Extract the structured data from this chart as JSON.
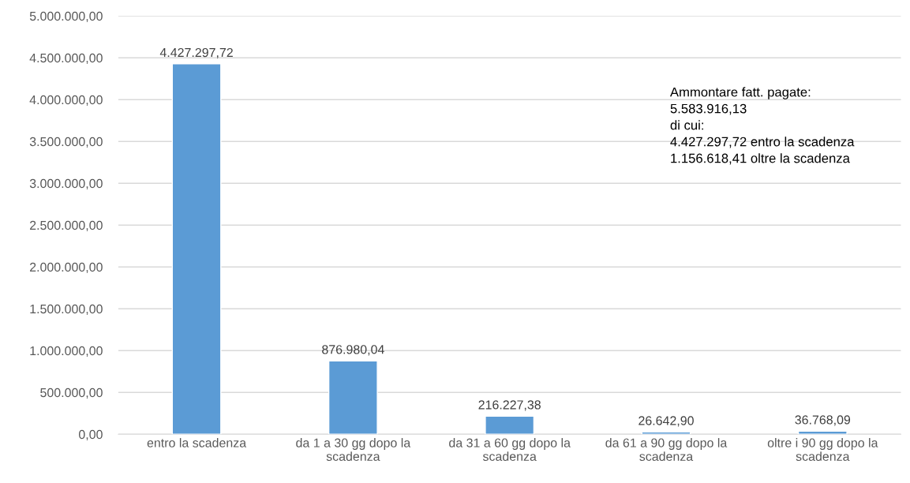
{
  "chart_data": {
    "type": "bar",
    "categories": [
      "entro la scadenza",
      "da 1 a 30 gg dopo la\nscadenza",
      "da 31 a 60 gg dopo la\nscadenza",
      "da 61 a 90 gg dopo la\nscadenza",
      "oltre i 90 gg dopo la\nscadenza"
    ],
    "values": [
      4427297.72,
      876980.04,
      216227.38,
      26642.9,
      36768.09
    ],
    "value_labels": [
      "4.427.297,72",
      "876.980,04",
      "216.227,38",
      "26.642,90",
      "36.768,09"
    ],
    "color": "#5b9bd5",
    "ylim": [
      0,
      5000000
    ],
    "yticks": [
      {
        "value": 0,
        "label": "0,00"
      },
      {
        "value": 500000,
        "label": "500.000,00"
      },
      {
        "value": 1000000,
        "label": "1.000.000,00"
      },
      {
        "value": 1500000,
        "label": "1.500.000,00"
      },
      {
        "value": 2000000,
        "label": "2.000.000,00"
      },
      {
        "value": 2500000,
        "label": "2.500.000,00"
      },
      {
        "value": 3000000,
        "label": "3.000.000,00"
      },
      {
        "value": 3500000,
        "label": "3.500.000,00"
      },
      {
        "value": 4000000,
        "label": "4.000.000,00"
      },
      {
        "value": 4500000,
        "label": "4.500.000,00"
      },
      {
        "value": 5000000,
        "label": "5.000.000,00"
      }
    ],
    "grid": "y",
    "legend": false,
    "annotations": [
      "Ammontare fatt. pagate:\n5.583.916,13\ndi cui:\n4.427.297,72 entro la scadenza\n1.156.618,41 oltre la scadenza"
    ]
  }
}
